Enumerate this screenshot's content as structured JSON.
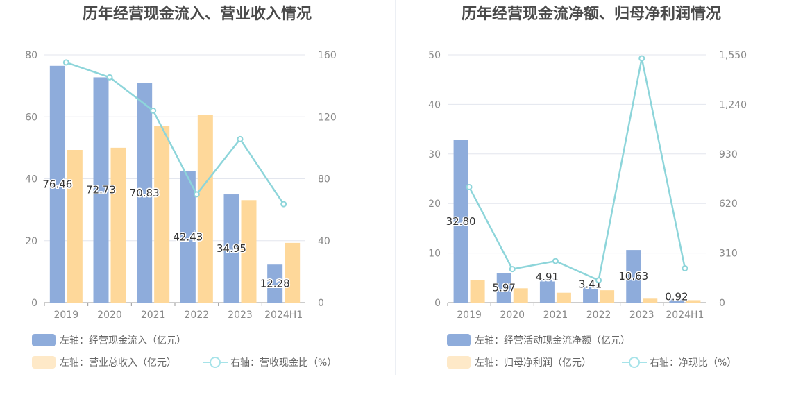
{
  "chart_data": [
    {
      "type": "bar",
      "title": "历年经营现金流入、营业收入情况",
      "categories": [
        "2019",
        "2020",
        "2021",
        "2022",
        "2023",
        "2024H1"
      ],
      "left_axis": {
        "min": 0,
        "max": 80,
        "ticks": [
          "0",
          "20",
          "40",
          "60",
          "80"
        ]
      },
      "right_axis": {
        "min": 0,
        "max": 160,
        "ticks": [
          "0",
          "40",
          "80",
          "120",
          "160"
        ]
      },
      "series": [
        {
          "name": "左轴：经营现金流入（亿元）",
          "kind": "bar",
          "axis": "left",
          "color": "#8eacdb",
          "values": [
            76.46,
            72.73,
            70.83,
            42.43,
            34.95,
            12.28
          ],
          "labels": [
            "76.46",
            "72.73",
            "70.83",
            "42.43",
            "34.95",
            "12.28"
          ]
        },
        {
          "name": "左轴：营业总收入（亿元）",
          "kind": "bar",
          "axis": "left",
          "color": "#fed89a",
          "values": [
            49.3,
            50.0,
            57.1,
            60.6,
            33.1,
            19.3
          ]
        },
        {
          "name": "右轴：营收现金比（%）",
          "kind": "line",
          "axis": "right",
          "color": "#8dd5da",
          "values": [
            155.1,
            145.5,
            124.0,
            70.0,
            105.6,
            63.6
          ]
        }
      ]
    },
    {
      "type": "bar",
      "title": "历年经营现金流净额、归母净利润情况",
      "categories": [
        "2019",
        "2020",
        "2021",
        "2022",
        "2023",
        "2024H1"
      ],
      "left_axis": {
        "min": 0,
        "max": 50,
        "ticks": [
          "0",
          "10",
          "20",
          "30",
          "40",
          "50"
        ]
      },
      "right_axis": {
        "min": 0,
        "max": 1550,
        "ticks": [
          "0",
          "310",
          "620",
          "930",
          "1,240",
          "1,550"
        ]
      },
      "series": [
        {
          "name": "左轴：经营活动现金流净额（亿元）",
          "kind": "bar",
          "axis": "left",
          "color": "#8eacdb",
          "values": [
            32.8,
            5.97,
            4.91,
            3.41,
            10.63,
            0.92
          ],
          "labels": [
            "32.80",
            "5.97",
            "4.91",
            "3.41",
            "10.63",
            "0.92"
          ]
        },
        {
          "name": "左轴：归母净利润（亿元）",
          "kind": "bar",
          "axis": "left",
          "color": "#fed89a",
          "values": [
            4.6,
            2.9,
            2.0,
            2.5,
            0.8,
            0.5
          ]
        },
        {
          "name": "右轴：净现比（%）",
          "kind": "line",
          "axis": "right",
          "color": "#8dd5da",
          "values": [
            723,
            210,
            260,
            140,
            1528,
            215
          ]
        }
      ]
    }
  ]
}
